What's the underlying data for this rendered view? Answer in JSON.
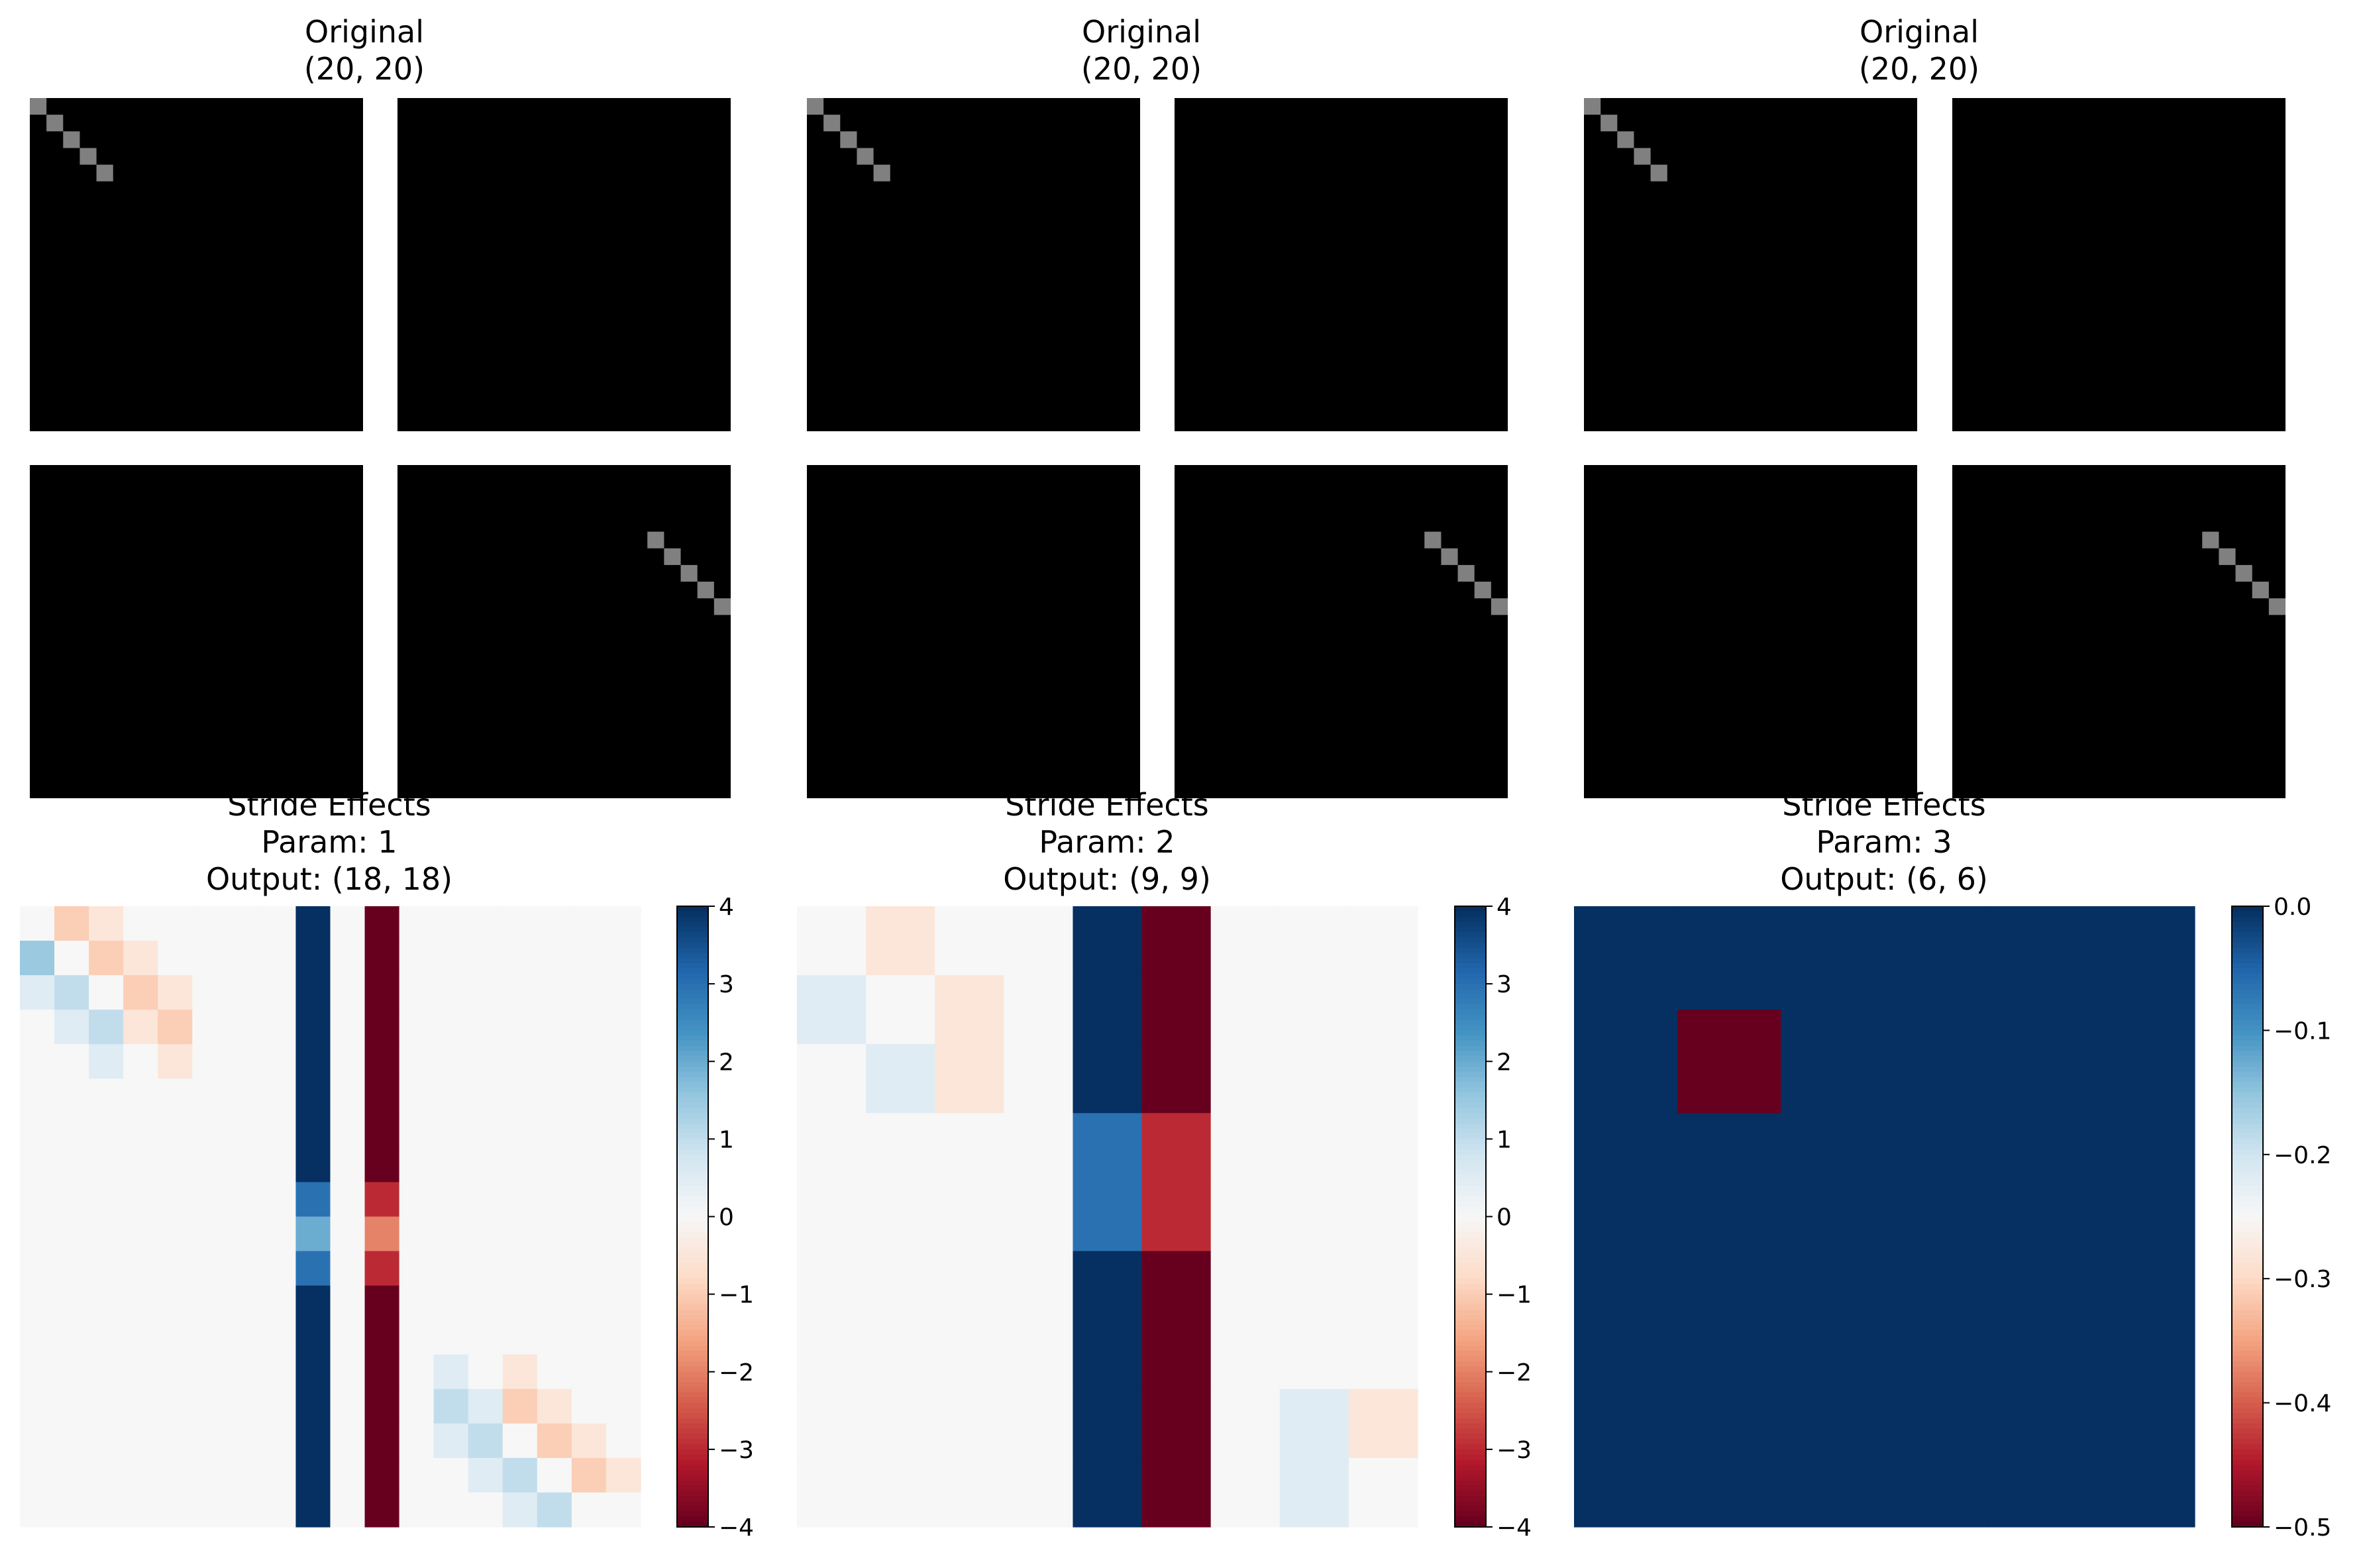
{
  "chart_data": [
    {
      "type": "heatmap",
      "panel": "original",
      "column": 1,
      "title": "Original",
      "subtitle": "(20, 20)",
      "grid": "2x2",
      "size": [
        20,
        20
      ],
      "cmap": "gray",
      "colors": {
        "background": "#000000",
        "marker": "#808080"
      },
      "tiles": [
        [
          [
            0,
            0
          ],
          [
            1,
            1
          ],
          [
            2,
            2
          ],
          [
            3,
            3
          ],
          [
            4,
            4
          ]
        ],
        [],
        [],
        [
          [
            15,
            4
          ],
          [
            16,
            5
          ],
          [
            17,
            6
          ],
          [
            18,
            7
          ],
          [
            19,
            8
          ]
        ]
      ]
    },
    {
      "type": "heatmap",
      "panel": "original",
      "column": 2,
      "title": "Original",
      "subtitle": "(20, 20)",
      "grid": "2x2",
      "size": [
        20,
        20
      ],
      "cmap": "gray",
      "colors": {
        "background": "#000000",
        "marker": "#808080"
      },
      "tiles": [
        [
          [
            0,
            0
          ],
          [
            1,
            1
          ],
          [
            2,
            2
          ],
          [
            3,
            3
          ],
          [
            4,
            4
          ]
        ],
        [],
        [],
        [
          [
            15,
            4
          ],
          [
            16,
            5
          ],
          [
            17,
            6
          ],
          [
            18,
            7
          ],
          [
            19,
            8
          ]
        ]
      ]
    },
    {
      "type": "heatmap",
      "panel": "original",
      "column": 3,
      "title": "Original",
      "subtitle": "(20, 20)",
      "grid": "2x2",
      "size": [
        20,
        20
      ],
      "cmap": "gray",
      "colors": {
        "background": "#000000",
        "marker": "#808080"
      },
      "tiles": [
        [
          [
            0,
            0
          ],
          [
            1,
            1
          ],
          [
            2,
            2
          ],
          [
            3,
            3
          ],
          [
            4,
            4
          ]
        ],
        [],
        [],
        [
          [
            15,
            4
          ],
          [
            16,
            5
          ],
          [
            17,
            6
          ],
          [
            18,
            7
          ],
          [
            19,
            8
          ]
        ]
      ]
    },
    {
      "type": "heatmap",
      "panel": "stride",
      "column": 1,
      "title": "Stride Effects",
      "param": "Param: 1",
      "output": "Output: (18, 18)",
      "cmap": "RdBu",
      "vmin": -4,
      "vmax": 4,
      "colorbar_ticks": [
        "4",
        "3",
        "2",
        "1",
        "0",
        "−1",
        "−2",
        "−3",
        "−4"
      ],
      "colorbar_tick_values": [
        4,
        3,
        2,
        1,
        0,
        -1,
        -2,
        -3,
        -4
      ],
      "values": [
        [
          0,
          -1,
          -0.5,
          0,
          0,
          0,
          0,
          0,
          4,
          0,
          -4,
          0,
          0,
          0,
          0,
          0,
          0,
          0
        ],
        [
          1.5,
          0,
          -1,
          -0.5,
          0,
          0,
          0,
          0,
          4,
          0,
          -4,
          0,
          0,
          0,
          0,
          0,
          0,
          0
        ],
        [
          0.5,
          1,
          0,
          -1,
          -0.5,
          0,
          0,
          0,
          4,
          0,
          -4,
          0,
          0,
          0,
          0,
          0,
          0,
          0
        ],
        [
          0,
          0.5,
          1,
          -0.5,
          -1,
          0,
          0,
          0,
          4,
          0,
          -4,
          0,
          0,
          0,
          0,
          0,
          0,
          0
        ],
        [
          0,
          0,
          0.5,
          0,
          -0.5,
          0,
          0,
          0,
          4,
          0,
          -4,
          0,
          0,
          0,
          0,
          0,
          0,
          0
        ],
        [
          0,
          0,
          0,
          0,
          0,
          0,
          0,
          0,
          4,
          0,
          -4,
          0,
          0,
          0,
          0,
          0,
          0,
          0
        ],
        [
          0,
          0,
          0,
          0,
          0,
          0,
          0,
          0,
          4,
          0,
          -4,
          0,
          0,
          0,
          0,
          0,
          0,
          0
        ],
        [
          0,
          0,
          0,
          0,
          0,
          0,
          0,
          0,
          4,
          0,
          -4,
          0,
          0,
          0,
          0,
          0,
          0,
          0
        ],
        [
          0,
          0,
          0,
          0,
          0,
          0,
          0,
          0,
          3,
          0,
          -3,
          0,
          0,
          0,
          0,
          0,
          0,
          0
        ],
        [
          0,
          0,
          0,
          0,
          0,
          0,
          0,
          0,
          2,
          0,
          -2,
          0,
          0,
          0,
          0,
          0,
          0,
          0
        ],
        [
          0,
          0,
          0,
          0,
          0,
          0,
          0,
          0,
          3,
          0,
          -3,
          0,
          0,
          0,
          0,
          0,
          0,
          0
        ],
        [
          0,
          0,
          0,
          0,
          0,
          0,
          0,
          0,
          4,
          0,
          -4,
          0,
          0,
          0,
          0,
          0,
          0,
          0
        ],
        [
          0,
          0,
          0,
          0,
          0,
          0,
          0,
          0,
          4,
          0,
          -4,
          0,
          0,
          0,
          0,
          0,
          0,
          0
        ],
        [
          0,
          0,
          0,
          0,
          0,
          0,
          0,
          0,
          4,
          0,
          -4,
          0,
          0.5,
          0,
          -0.5,
          0,
          0,
          0
        ],
        [
          0,
          0,
          0,
          0,
          0,
          0,
          0,
          0,
          4,
          0,
          -4,
          0,
          1,
          0.5,
          -1,
          -0.5,
          0,
          0
        ],
        [
          0,
          0,
          0,
          0,
          0,
          0,
          0,
          0,
          4,
          0,
          -4,
          0,
          0.5,
          1,
          0,
          -1,
          -0.5,
          0
        ],
        [
          0,
          0,
          0,
          0,
          0,
          0,
          0,
          0,
          4,
          0,
          -4,
          0,
          0,
          0.5,
          1,
          0,
          -1,
          -0.5
        ],
        [
          0,
          0,
          0,
          0,
          0,
          0,
          0,
          0,
          4,
          0,
          -4,
          0,
          0,
          0,
          0.5,
          1,
          0,
          0
        ]
      ]
    },
    {
      "type": "heatmap",
      "panel": "stride",
      "column": 2,
      "title": "Stride Effects",
      "param": "Param: 2",
      "output": "Output: (9, 9)",
      "cmap": "RdBu",
      "vmin": -4,
      "vmax": 4,
      "colorbar_ticks": [
        "4",
        "3",
        "2",
        "1",
        "0",
        "−1",
        "−2",
        "−3",
        "−4"
      ],
      "colorbar_tick_values": [
        4,
        3,
        2,
        1,
        0,
        -1,
        -2,
        -3,
        -4
      ],
      "values": [
        [
          0,
          -0.5,
          0,
          0,
          4,
          -4,
          0,
          0,
          0
        ],
        [
          0.5,
          0,
          -0.5,
          0,
          4,
          -4,
          0,
          0,
          0
        ],
        [
          0,
          0.5,
          -0.5,
          0,
          4,
          -4,
          0,
          0,
          0
        ],
        [
          0,
          0,
          0,
          0,
          3,
          -3,
          0,
          0,
          0
        ],
        [
          0,
          0,
          0,
          0,
          3,
          -3,
          0,
          0,
          0
        ],
        [
          0,
          0,
          0,
          0,
          4,
          -4,
          0,
          0,
          0
        ],
        [
          0,
          0,
          0,
          0,
          4,
          -4,
          0,
          0,
          0
        ],
        [
          0,
          0,
          0,
          0,
          4,
          -4,
          0,
          0.5,
          -0.5
        ],
        [
          0,
          0,
          0,
          0,
          4,
          -4,
          0,
          0.5,
          0
        ]
      ]
    },
    {
      "type": "heatmap",
      "panel": "stride",
      "column": 3,
      "title": "Stride Effects",
      "param": "Param: 3",
      "output": "Output: (6, 6)",
      "cmap": "RdBu",
      "vmin": -0.5,
      "vmax": 0,
      "colorbar_ticks": [
        "0.0",
        "−0.1",
        "−0.2",
        "−0.3",
        "−0.4",
        "−0.5"
      ],
      "colorbar_tick_values": [
        0,
        -0.1,
        -0.2,
        -0.3,
        -0.4,
        -0.5
      ],
      "values": [
        [
          0,
          0,
          0,
          0,
          0,
          0
        ],
        [
          0,
          -0.5,
          0,
          0,
          0,
          0
        ],
        [
          0,
          0,
          0,
          0,
          0,
          0
        ],
        [
          0,
          0,
          0,
          0,
          0,
          0
        ],
        [
          0,
          0,
          0,
          0,
          0,
          0
        ],
        [
          0,
          0,
          0,
          0,
          0,
          0
        ]
      ]
    }
  ]
}
